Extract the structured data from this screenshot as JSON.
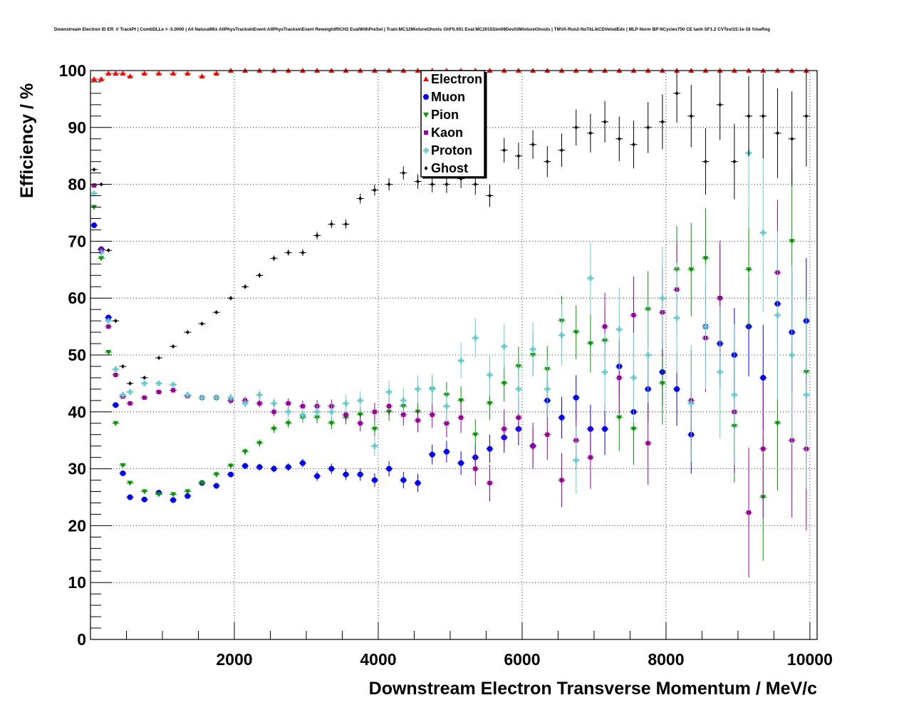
{
  "chart_data": {
    "type": "scatter",
    "title": "Downstream Electron ID Eff. V TrackPt | CombDLLe > -5.0000 | All NaturalMix AllPhysTracksInEvent:AllPhysTracksInEvent ReweightRICH2 EvalWithPreSel | Train:MC12MixtureGhosts GhF0.001 Eval:MC2015Sim09Dev03MixtureGhosts | TMVA-Run2-NoTkLikCDVelodEdx | MLP Norm BP NCycles750 CE tanh SF1.2 CVTest15:1e-16 !UseReg",
    "xlabel": "Downstream Electron Transverse Momentum / MeV/c",
    "ylabel": "Efficiency / %",
    "xlim": [
      0,
      10100
    ],
    "ylim": [
      0,
      100
    ],
    "xticks": [
      2000,
      4000,
      6000,
      8000,
      10000
    ],
    "xtick_labels": [
      "2000",
      "4000",
      "6000",
      "8000",
      "10000"
    ],
    "yticks": [
      0,
      10,
      20,
      30,
      40,
      50,
      60,
      70,
      80,
      90,
      100
    ],
    "ytick_labels": [
      "0",
      "10",
      "20",
      "30",
      "40",
      "50",
      "60",
      "70",
      "80",
      "90",
      "100"
    ],
    "grid": true,
    "legend_position": "top-center",
    "x": [
      50,
      150,
      250,
      350,
      450,
      550,
      750,
      950,
      1150,
      1350,
      1550,
      1750,
      1950,
      2150,
      2350,
      2550,
      2750,
      2950,
      3150,
      3350,
      3550,
      3750,
      3950,
      4150,
      4350,
      4550,
      4750,
      4950,
      5150,
      5350,
      5550,
      5750,
      5950,
      6150,
      6350,
      6550,
      6750,
      6950,
      7150,
      7350,
      7550,
      7750,
      7950,
      8150,
      8350,
      8550,
      8750,
      8950,
      9150,
      9350,
      9550,
      9750,
      9950
    ],
    "series": [
      {
        "name": "Electron",
        "color": "#ff0000",
        "marker": "triangle-up",
        "err_scale": 0.3,
        "values": [
          98.5,
          98.5,
          99.5,
          99.5,
          99.5,
          99,
          99.5,
          99.5,
          99.5,
          99.5,
          99,
          99.5,
          100,
          100,
          100,
          100,
          100,
          100,
          100,
          100,
          100,
          100,
          100,
          100,
          100,
          100,
          100,
          100,
          100,
          100,
          100,
          100,
          100,
          100,
          100,
          100,
          100,
          100,
          100,
          100,
          100,
          100,
          100,
          100,
          100,
          100,
          100,
          100,
          100,
          100,
          100,
          100,
          100
        ]
      },
      {
        "name": "Muon",
        "color": "#0000ff",
        "marker": "circle",
        "err_scale": 1.0,
        "values": [
          72.8,
          68.6,
          56.6,
          41.2,
          29.2,
          25,
          24.6,
          25.8,
          24.5,
          25.2,
          27.5,
          27,
          29,
          30.5,
          30.3,
          30,
          30.3,
          31,
          28.7,
          30,
          29,
          29,
          28,
          30,
          28,
          27.5,
          32.5,
          33,
          31,
          32,
          33.5,
          35.5,
          37,
          34,
          42,
          39,
          42.5,
          37,
          37,
          48,
          40,
          44,
          47,
          44,
          36,
          55,
          52,
          50,
          55,
          46,
          59,
          54,
          56
        ]
      },
      {
        "name": "Pion",
        "color": "#009900",
        "marker": "triangle-down",
        "err_scale": 1.2,
        "values": [
          76,
          67,
          50.5,
          38,
          30.6,
          27.5,
          26,
          25.5,
          25.5,
          26,
          27.5,
          29,
          30.5,
          33,
          34.5,
          37,
          38,
          39,
          39,
          38,
          39,
          39.5,
          37,
          40,
          41,
          40,
          44,
          43,
          42,
          36,
          41.5,
          45,
          48,
          50,
          47.5,
          56,
          54,
          52,
          52.5,
          39,
          37,
          58,
          45,
          65,
          65,
          67,
          60,
          37.5,
          65,
          25,
          38,
          70,
          47
        ]
      },
      {
        "name": "Kaon",
        "color": "#990099",
        "marker": "square",
        "err_scale": 1.3,
        "values": [
          79.8,
          68.5,
          55,
          46.5,
          42.7,
          41.5,
          42.5,
          43.5,
          43.8,
          42.8,
          42.5,
          42.5,
          42,
          42,
          41.5,
          40,
          41.5,
          41,
          41,
          41,
          39.5,
          38,
          40,
          41,
          39.5,
          38.5,
          39.5,
          38,
          39,
          30,
          27.5,
          37,
          39,
          34,
          36,
          28,
          35,
          32,
          55,
          46,
          57,
          34.5,
          57.5,
          61.5,
          42,
          53,
          60,
          40,
          22.3,
          33.5,
          64.5,
          35,
          33.5
        ]
      },
      {
        "name": "Proton",
        "color": "#66cccc",
        "marker": "cross",
        "err_scale": 1.5,
        "values": [
          78.4,
          68,
          56,
          47.5,
          43,
          43.5,
          45,
          45,
          44.8,
          43,
          42.5,
          42.5,
          42.5,
          41.5,
          43,
          41.5,
          40,
          39.5,
          40,
          40,
          41.5,
          42,
          34,
          43.5,
          42,
          44,
          44,
          41,
          49,
          53,
          46.5,
          51.5,
          44,
          51,
          44,
          53.5,
          31.5,
          63.5,
          47,
          54.5,
          46,
          50,
          60,
          56.5,
          41.5,
          55,
          47,
          43,
          85.5,
          71.5,
          57,
          50,
          43
        ]
      },
      {
        "name": "Ghost",
        "color": "#000000",
        "marker": "diamond",
        "err_scale": 0.8,
        "values": [
          82.6,
          80,
          68.4,
          56,
          48,
          45,
          46,
          49.5,
          51.5,
          54,
          55.5,
          57.5,
          60,
          62,
          64,
          67,
          68,
          68,
          71,
          73,
          73,
          77.5,
          79,
          80,
          82,
          80.5,
          80,
          80,
          81,
          80,
          78,
          86,
          85,
          87,
          84,
          86,
          90,
          89,
          91,
          88,
          87,
          90,
          91,
          96,
          92,
          84,
          94,
          84,
          92,
          92,
          89,
          88,
          92
        ]
      }
    ]
  }
}
